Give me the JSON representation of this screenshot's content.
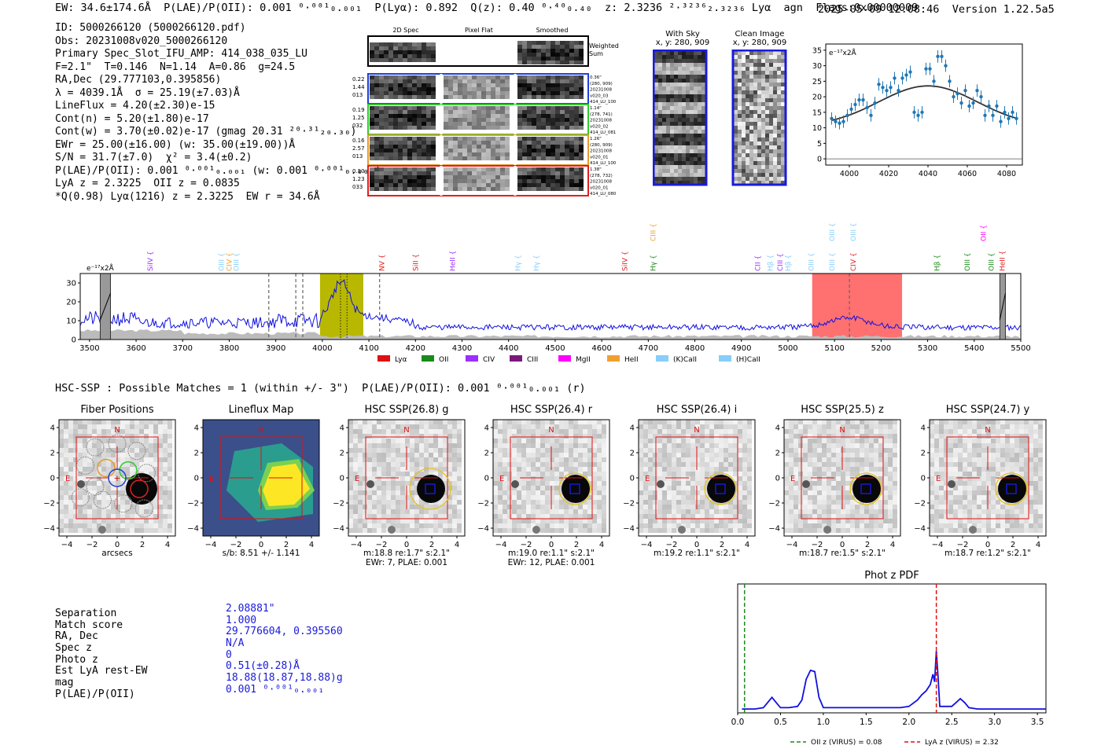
{
  "header": {
    "summary": "EW: 34.6±174.6Å  P(LAE)/P(OII): 0.001 ⁰·⁰⁰¹₀.₀₀₁  P(Lyα): 0.892  Q(z): 0.40 ⁰·⁴⁰₀.₄₀  z: 2.3236 ²·³²³⁶₂.₃₂₃₆ Lyα  agn  Flags:0x00000009",
    "timestamp": "2025-05-09 12:08:46",
    "version": "Version 1.22.5a5"
  },
  "meta": [
    "ID: 5000266120 (5000266120.pdf)",
    "Obs: 20231008v020_5000266120",
    "Primary Spec_Slot_IFU_AMP: 414_038_035_LU",
    "F=2.1\"  T=0.146  N=1.14  A=0.86  g=24.5",
    "RA,Dec (29.777103,0.395856)",
    "λ = 4039.1Å  σ = 25.19(±7.03)Å",
    "LineFlux = 4.20(±2.30)e-15",
    "Cont(n) = 5.20(±1.80)e-17",
    "Cont(w) = 3.70(±0.02)e-17 (gmag 20.31 ²⁰·³¹₂₀.₃₀)",
    "EWr = 25.00(±16.00) (w: 35.00(±19.00))Å",
    "S/N = 31.7(±7.0)  χ² = 3.4(±0.2)",
    "P(LAE)/P(OII): 0.001 ⁰·⁰⁰¹₀.₀₀₁ (w: 0.001 ⁰·⁰⁰¹₀.₀₀₁)",
    "LyA z = 2.3225  OII z = 0.0835",
    "*Q(0.98) Lyα(1216) z = 2.3225  EW r = 34.6Å"
  ],
  "cutouts": {
    "columns": [
      "2D Spec",
      "Pixel Flat",
      "Smoothed"
    ],
    "weighted_label": "Weighted Sum",
    "rows": [
      {
        "left": [
          "0.22",
          "1.44",
          "013"
        ],
        "right": [
          "0.36\"",
          "(280, 909)",
          "20231008",
          "v020_03",
          "414_LU_100"
        ],
        "color": "#1f3fd6"
      },
      {
        "left": [
          "0.19",
          "1.25",
          "032"
        ],
        "right": [
          "1.14\"",
          "(278, 741)",
          "20231008",
          "v020_02",
          "414_LU_081"
        ],
        "color": "#2ecc2e"
      },
      {
        "left": [
          "0.16",
          "2.57",
          "013"
        ],
        "right": [
          "1.26\"",
          "(280, 909)",
          "20231008",
          "v020_01",
          "414_LU_100"
        ],
        "color": "#e59b2a"
      },
      {
        "left": [
          "0.10",
          "1.23",
          "033"
        ],
        "right": [
          "1.38\"",
          "(278, 732)",
          "20231008",
          "v020_01",
          "414_LU_080"
        ],
        "color": "#e02020"
      }
    ],
    "with_sky": {
      "title": "With Sky",
      "coords": "x, y: 280, 909"
    },
    "clean": {
      "title": "Clean Image",
      "coords": "x, y: 280, 909"
    }
  },
  "colors": {
    "spectrum": "#1010e0",
    "lya_band": "#b8b800",
    "red_band": "#ff7070",
    "fit": "#333333",
    "points": "#1f77b4",
    "pdf_line": "#1010e0",
    "oii_line": "#1a8a1a",
    "lya_line": "#e01010"
  },
  "chart_data": [
    {
      "type": "scatter",
      "name": "line-fit",
      "ylabel": "e⁻¹⁷x2Å",
      "xlim": [
        3988,
        4088
      ],
      "ylim": [
        -2,
        37
      ],
      "xticks": [
        4000,
        4020,
        4040,
        4060,
        4080
      ],
      "yticks": [
        0,
        5,
        10,
        15,
        20,
        25,
        30,
        35
      ],
      "x": [
        3991,
        3993,
        3995,
        3997,
        3999,
        4001,
        4003,
        4005,
        4007,
        4009,
        4011,
        4013,
        4015,
        4017,
        4019,
        4021,
        4023,
        4025,
        4027,
        4029,
        4031,
        4033,
        4035,
        4037,
        4039,
        4041,
        4043,
        4045,
        4047,
        4049,
        4051,
        4053,
        4055,
        4057,
        4059,
        4061,
        4063,
        4065,
        4067,
        4069,
        4071,
        4073,
        4075,
        4077,
        4079,
        4081,
        4083,
        4085
      ],
      "y": [
        13,
        12,
        11.5,
        12,
        14,
        16,
        17.5,
        19,
        19,
        16.5,
        14,
        18,
        24,
        23,
        22,
        23,
        26,
        22,
        26,
        27,
        28,
        15,
        14,
        15,
        29,
        29,
        25,
        33,
        33,
        30,
        25,
        20,
        21,
        18,
        22,
        17,
        18,
        22,
        20,
        14,
        17,
        14,
        17,
        12,
        15,
        13,
        15,
        13
      ],
      "fit": {
        "amplitude": 13,
        "center": 4040,
        "sigma": 25,
        "offset": 10.5
      }
    },
    {
      "type": "line",
      "name": "full-spectrum",
      "ylabel": "e⁻¹⁷x2Å",
      "xlim": [
        3480,
        5500
      ],
      "ylim": [
        0,
        35
      ],
      "xticks": [
        3500,
        3600,
        3700,
        3800,
        3900,
        4000,
        4100,
        4200,
        4300,
        4400,
        4500,
        4600,
        4700,
        4800,
        4900,
        5000,
        5100,
        5200,
        5300,
        5400,
        5500
      ],
      "yticks": [
        0,
        10,
        20,
        30
      ],
      "regions": [
        {
          "from": 3995,
          "to": 4088,
          "color": "#b8b800"
        },
        {
          "from": 5052,
          "to": 5245,
          "color": "#ff7070"
        }
      ],
      "dashed_lines": [
        3885,
        3943,
        3958,
        4123,
        5132
      ],
      "dotted_lines": [
        4039,
        4053
      ],
      "hatched": [
        [
          3523,
          3545
        ],
        [
          5455,
          5467
        ]
      ],
      "line_labels": [
        {
          "label": "SiIV",
          "x": 3630,
          "color": "#9b30ff",
          "row": 1
        },
        {
          "label": "OIII",
          "x": 3783,
          "color": "#87cefa",
          "row": 1
        },
        {
          "label": "CIV",
          "x": 3800,
          "color": "#f0a030",
          "row": 1
        },
        {
          "label": "OIII",
          "x": 3815,
          "color": "#87cefa",
          "row": 1
        },
        {
          "label": "NV",
          "x": 4128,
          "color": "#e02020",
          "row": 1
        },
        {
          "label": "SiII",
          "x": 4200,
          "color": "#e02020",
          "row": 1
        },
        {
          "label": "HeII",
          "x": 4280,
          "color": "#9b30ff",
          "row": 1
        },
        {
          "label": "Hγ",
          "x": 4420,
          "color": "#87cefa",
          "row": 1
        },
        {
          "label": "Hγ",
          "x": 4460,
          "color": "#87cefa",
          "row": 1
        },
        {
          "label": "SiIV",
          "x": 4650,
          "color": "#e02020",
          "row": 1
        },
        {
          "label": "CIII",
          "x": 4710,
          "color": "#f0a030",
          "row": 0
        },
        {
          "label": "Hγ",
          "x": 4710,
          "color": "#1a8a1a",
          "row": 1
        },
        {
          "label": "CII",
          "x": 4935,
          "color": "#9b30ff",
          "row": 1
        },
        {
          "label": "Hβ",
          "x": 4962,
          "color": "#87cefa",
          "row": 1
        },
        {
          "label": "CIII",
          "x": 4983,
          "color": "#9b30ff",
          "row": 1
        },
        {
          "label": "Hβ",
          "x": 5000,
          "color": "#87cefa",
          "row": 1
        },
        {
          "label": "OIII",
          "x": 5050,
          "color": "#87cefa",
          "row": 1
        },
        {
          "label": "OIII",
          "x": 5095,
          "color": "#87cefa",
          "row": 0
        },
        {
          "label": "OIII",
          "x": 5095,
          "color": "#87cefa",
          "row": 1
        },
        {
          "label": "OIII",
          "x": 5140,
          "color": "#87cefa",
          "row": 0
        },
        {
          "label": "CIV",
          "x": 5140,
          "color": "#e02020",
          "row": 1
        },
        {
          "label": "Hβ",
          "x": 5320,
          "color": "#1a8a1a",
          "row": 1
        },
        {
          "label": "OII",
          "x": 5420,
          "color": "#ff00ff",
          "row": 0
        },
        {
          "label": "OIII",
          "x": 5385,
          "color": "#1a8a1a",
          "row": 1
        },
        {
          "label": "OIII",
          "x": 5437,
          "color": "#1a8a1a",
          "row": 1
        },
        {
          "label": "HeII",
          "x": 5460,
          "color": "#e02020",
          "row": 1
        }
      ],
      "legend": [
        {
          "label": "Lyα",
          "color": "#e01010"
        },
        {
          "label": "OII",
          "color": "#1a8a1a"
        },
        {
          "label": "CIV",
          "color": "#9b30ff"
        },
        {
          "label": "CIII",
          "color": "#7a1a7a"
        },
        {
          "label": "MgII",
          "color": "#ff00ff"
        },
        {
          "label": "HeII",
          "color": "#f0a030"
        },
        {
          "label": "(K)CaII",
          "color": "#87cefa"
        },
        {
          "label": "(H)CaII",
          "color": "#87cefa"
        }
      ]
    },
    {
      "type": "line",
      "name": "phot-z-pdf",
      "title": "Phot z PDF",
      "xlim": [
        0,
        3.6
      ],
      "xticks": [
        0.0,
        0.5,
        1.0,
        1.5,
        2.0,
        2.5,
        3.0,
        3.5
      ],
      "x": [
        0.05,
        0.1,
        0.2,
        0.3,
        0.35,
        0.4,
        0.45,
        0.5,
        0.55,
        0.6,
        0.7,
        0.75,
        0.8,
        0.85,
        0.9,
        0.95,
        1.0,
        1.1,
        1.3,
        1.5,
        1.7,
        1.9,
        2.0,
        2.1,
        2.15,
        2.2,
        2.25,
        2.28,
        2.3,
        2.32,
        2.34,
        2.36,
        2.4,
        2.5,
        2.55,
        2.6,
        2.65,
        2.7,
        2.8,
        3.0,
        3.3,
        3.6
      ],
      "y": [
        0.03,
        0.03,
        0.03,
        0.04,
        0.08,
        0.12,
        0.08,
        0.04,
        0.04,
        0.04,
        0.05,
        0.1,
        0.26,
        0.33,
        0.32,
        0.12,
        0.04,
        0.04,
        0.04,
        0.04,
        0.04,
        0.04,
        0.05,
        0.1,
        0.14,
        0.17,
        0.22,
        0.3,
        0.24,
        0.48,
        0.28,
        0.05,
        0.05,
        0.05,
        0.08,
        0.11,
        0.08,
        0.04,
        0.03,
        0.03,
        0.03,
        0.03
      ],
      "ylim": [
        0,
        1.0
      ],
      "markers": [
        {
          "x": 0.08,
          "color": "#1a8a1a",
          "label": "OII z (VIRUS) = 0.08"
        },
        {
          "x": 2.32,
          "color": "#e01010",
          "label": "LyA z (VIRUS) = 2.32"
        }
      ]
    }
  ],
  "hsc": {
    "title": "HSC-SSP : Possible Matches = 1 (within +/- 3\")  P(LAE)/P(OII): 0.001 ⁰·⁰⁰¹₀.₀₀₁ (r)",
    "panels": [
      {
        "title": "Fiber Positions",
        "caption": [
          "arcsecs"
        ]
      },
      {
        "title": "Lineflux Map",
        "caption": [
          "s/b: 8.51 +/- 1.141"
        ]
      },
      {
        "title": "HSC SSP(26.8) g",
        "caption": [
          "m:18.8  re:1.7\"  s:2.1\"",
          "EWr: 7, PLAE: 0.001"
        ]
      },
      {
        "title": "HSC SSP(26.4) r",
        "caption": [
          "m:19.0  re:1.1\"  s:2.1\"",
          "EWr: 12, PLAE: 0.001"
        ]
      },
      {
        "title": "HSC SSP(26.4) i",
        "caption": [
          "m:19.2  re:1.1\"  s:2.1\""
        ]
      },
      {
        "title": "HSC SSP(25.5) z",
        "caption": [
          "m:18.7  re:1.5\"  s:2.1\""
        ]
      },
      {
        "title": "HSC SSP(24.7) y",
        "caption": [
          "m:18.7  re:1.2\"  s:2.1\""
        ]
      }
    ],
    "axis_ticks": [
      "−4",
      "−2",
      "0",
      "2",
      "4"
    ],
    "north": "N",
    "east": "E"
  },
  "match": {
    "labels": [
      "Separation",
      "Match score",
      "RA, Dec",
      "Spec z",
      "Photo z",
      "Est LyA rest-EW",
      "mag",
      "P(LAE)/P(OII)"
    ],
    "values": [
      "2.08881\"",
      "1.000",
      "29.776604, 0.395560",
      "N/A",
      "0",
      "0.51(±0.28)Å",
      "18.88(18.87,18.88)g",
      "0.001 ⁰·⁰⁰¹₀.₀₀₁"
    ]
  }
}
